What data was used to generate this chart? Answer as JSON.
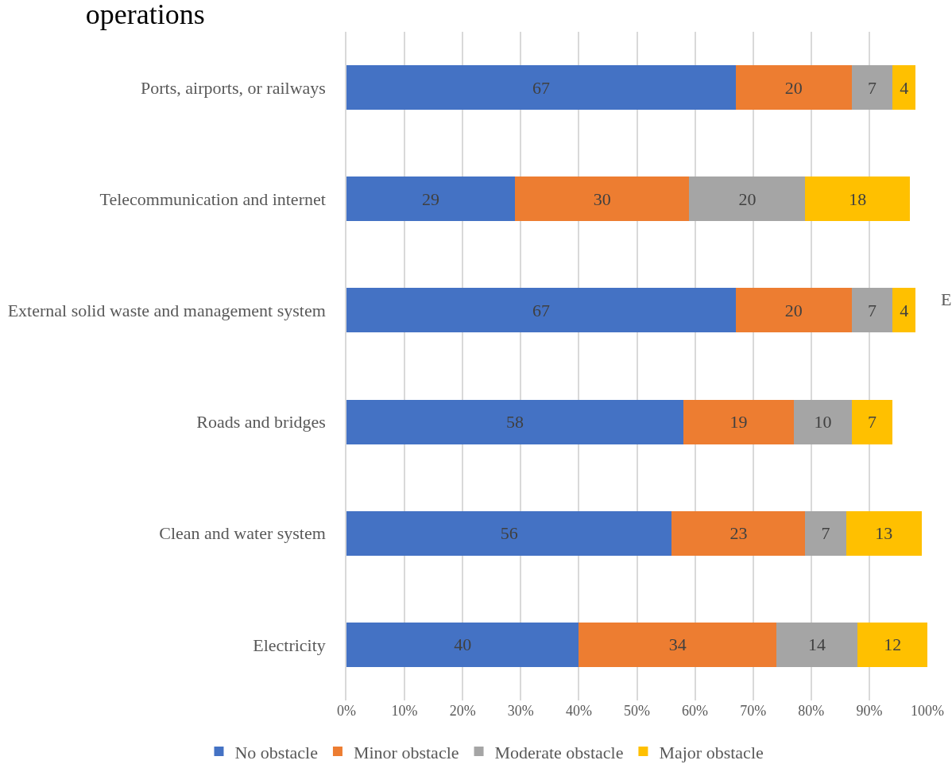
{
  "chart_data": {
    "type": "bar",
    "orientation": "horizontal",
    "stacked": true,
    "title": "operations",
    "categories": [
      "Ports, airports, or railways",
      "Telecommunication and internet",
      "External solid waste and management system",
      "Roads and bridges",
      "Clean and water system",
      "Electricity"
    ],
    "series": [
      {
        "name": "No obstacle",
        "color": "#4472c4",
        "values": [
          67,
          29,
          67,
          58,
          56,
          40
        ]
      },
      {
        "name": "Minor obstacle",
        "color": "#ed7d31",
        "values": [
          20,
          30,
          20,
          19,
          23,
          34
        ]
      },
      {
        "name": "Moderate obstacle",
        "color": "#a5a5a5",
        "values": [
          7,
          20,
          7,
          10,
          7,
          14
        ]
      },
      {
        "name": "Major obstacle",
        "color": "#ffc000",
        "values": [
          4,
          18,
          4,
          7,
          13,
          12
        ]
      }
    ],
    "xlim": [
      0,
      100
    ],
    "xticks": [
      {
        "value": 0,
        "label": "0%"
      },
      {
        "value": 10,
        "label": "10%"
      },
      {
        "value": 20,
        "label": "20%"
      },
      {
        "value": 30,
        "label": "30%"
      },
      {
        "value": 40,
        "label": "40%"
      },
      {
        "value": 50,
        "label": "50%"
      },
      {
        "value": 60,
        "label": "60%"
      },
      {
        "value": 70,
        "label": "70%"
      },
      {
        "value": 80,
        "label": "80%"
      },
      {
        "value": 90,
        "label": "90%"
      },
      {
        "value": 100,
        "label": "100%"
      }
    ],
    "grid": "x",
    "data_labels": true,
    "legend": "bottom",
    "annotations": [
      "E"
    ]
  }
}
